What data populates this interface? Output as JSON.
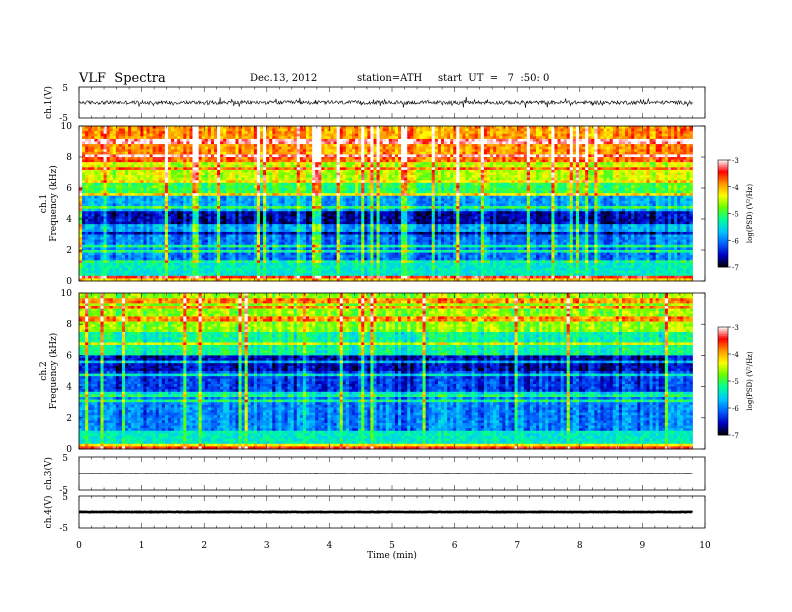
{
  "header": {
    "title": "VLF  Spectra",
    "date": "Dec.13, 2012",
    "station": "station=ATH",
    "start": "start  UT  =   7  :50: 0"
  },
  "colorbar": {
    "label": "log(PSD) (V²/Hz)",
    "ticks": [
      "-3",
      "-4",
      "-5",
      "-6",
      "-7"
    ],
    "range": [
      -7,
      -3
    ],
    "colors": [
      "#000000",
      "#0000c8",
      "#0064ff",
      "#00c8ff",
      "#00ff96",
      "#64ff00",
      "#ffff00",
      "#ff9600",
      "#ff0000",
      "#ffffff"
    ]
  },
  "chart_data": [
    {
      "type": "line",
      "name": "ch1-waveform",
      "ylabel": "ch.1(V)",
      "yticks": [
        "5",
        "-5"
      ],
      "ylim": [
        -5,
        5
      ],
      "xlim": [
        0,
        10
      ],
      "description_values": {
        "baseline": 0,
        "amplitude_approx": 2.0
      }
    },
    {
      "type": "heatmap",
      "name": "ch1-spectrogram",
      "ylabel": "ch.1\nFrequency (kHz)",
      "yticks": [
        "0",
        "2",
        "4",
        "6",
        "8",
        "10"
      ],
      "ylim": [
        0,
        10
      ],
      "xlim": [
        0,
        9.8
      ],
      "band_logpsd": [
        {
          "f": [
            0.0,
            0.4
          ],
          "v": -4.2
        },
        {
          "f": [
            0.4,
            1.2
          ],
          "v": -5.4
        },
        {
          "f": [
            1.2,
            3.0
          ],
          "v": -6.0
        },
        {
          "f": [
            3.0,
            4.5
          ],
          "v": -6.6
        },
        {
          "f": [
            4.5,
            5.5
          ],
          "v": -5.8
        },
        {
          "f": [
            5.5,
            6.5
          ],
          "v": -5.0
        },
        {
          "f": [
            6.5,
            8.0
          ],
          "v": -4.5
        },
        {
          "f": [
            8.0,
            10.0
          ],
          "v": -3.9
        }
      ]
    },
    {
      "type": "heatmap",
      "name": "ch2-spectrogram",
      "ylabel": "ch.2\nFrequency (kHz)",
      "yticks": [
        "0",
        "2",
        "4",
        "6",
        "8",
        "10"
      ],
      "ylim": [
        0,
        10
      ],
      "xlim": [
        0,
        9.8
      ],
      "band_logpsd": [
        {
          "f": [
            0.0,
            0.4
          ],
          "v": -4.3
        },
        {
          "f": [
            0.4,
            1.2
          ],
          "v": -5.4
        },
        {
          "f": [
            1.2,
            3.5
          ],
          "v": -6.0
        },
        {
          "f": [
            3.5,
            5.0
          ],
          "v": -6.3
        },
        {
          "f": [
            5.0,
            6.0
          ],
          "v": -6.6
        },
        {
          "f": [
            6.0,
            7.5
          ],
          "v": -5.3
        },
        {
          "f": [
            7.5,
            10.0
          ],
          "v": -4.7
        }
      ]
    },
    {
      "type": "line",
      "name": "ch3-waveform",
      "ylabel": "ch.3(V)",
      "yticks": [
        "5",
        "-5"
      ],
      "ylim": [
        -5,
        5
      ],
      "xlim": [
        0,
        10
      ],
      "description_values": {
        "baseline": 0
      }
    },
    {
      "type": "line",
      "name": "ch4-waveform",
      "ylabel": "ch.4(V)",
      "yticks": [
        "5",
        "-5"
      ],
      "ylim": [
        -5,
        5
      ],
      "xlim": [
        0,
        10
      ],
      "description_values": {
        "baseline": 0
      }
    }
  ],
  "xaxis": {
    "label": "Time  (min)",
    "ticks": [
      "0",
      "1",
      "2",
      "3",
      "4",
      "5",
      "6",
      "7",
      "8",
      "9",
      "10"
    ],
    "range": [
      0,
      10
    ],
    "data_end": 9.8
  }
}
